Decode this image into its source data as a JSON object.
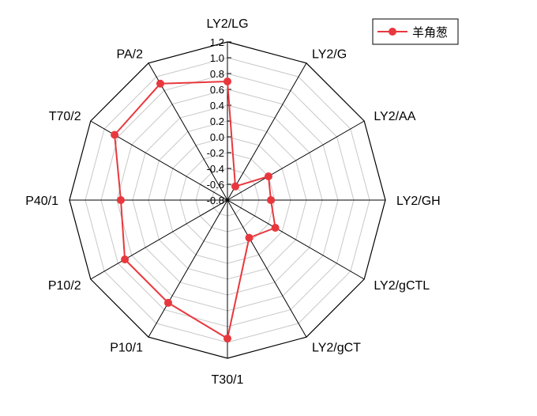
{
  "chart_data": {
    "type": "radar",
    "title": "",
    "axes": [
      "LY2/LG",
      "LY2/G",
      "LY2/AA",
      "LY2/GH",
      "LY2/gCTL",
      "LY2/gCT",
      "T30/1",
      "P10/1",
      "P10/2",
      "P40/1",
      "T70/2",
      "PA/2"
    ],
    "rlim": [
      -0.8,
      1.2
    ],
    "ticks": [
      "-0.8",
      "-0.6",
      "-0.4",
      "-0.2",
      "0.0",
      "0.2",
      "0.4",
      "0.6",
      "0.8",
      "1.0",
      "1.2"
    ],
    "grid": true,
    "legend_position": "top-right",
    "series": [
      {
        "name": "羊角葱",
        "color": "#e8383d",
        "values": [
          0.7,
          -0.6,
          -0.2,
          -0.25,
          -0.1,
          -0.25,
          0.95,
          0.7,
          0.7,
          0.55,
          0.85,
          0.9
        ]
      }
    ]
  }
}
